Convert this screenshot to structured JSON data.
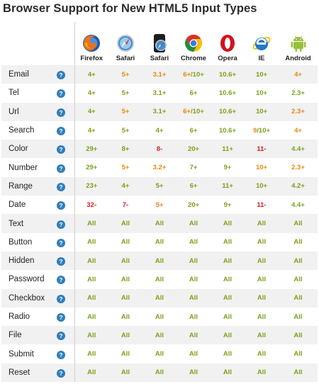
{
  "title": "Browser Support for New HTML5 Input Types",
  "browsers": [
    {
      "name": "Firefox",
      "icon": "firefox-icon"
    },
    {
      "name": "Safari",
      "icon": "safari-icon"
    },
    {
      "name": "Safari",
      "icon": "safari-ios-icon"
    },
    {
      "name": "Chrome",
      "icon": "chrome-icon"
    },
    {
      "name": "Opera",
      "icon": "opera-icon"
    },
    {
      "name": "IE",
      "icon": "ie-icon"
    },
    {
      "name": "Android",
      "icon": "android-icon"
    }
  ],
  "help_symbol": "?",
  "colors": {
    "full": "#7aa21c",
    "partial": "#e58a10",
    "none": "#d32020",
    "help": "#2f7fb8"
  },
  "rows": [
    {
      "label": "Email",
      "cells": [
        {
          "parts": [
            {
              "text": "4+",
              "status": "g"
            }
          ]
        },
        {
          "parts": [
            {
              "text": "5+",
              "status": "o"
            }
          ]
        },
        {
          "parts": [
            {
              "text": "3.1+",
              "status": "o"
            }
          ]
        },
        {
          "parts": [
            {
              "text": "6+",
              "status": "o"
            },
            {
              "text": "/10+",
              "status": "g"
            }
          ]
        },
        {
          "parts": [
            {
              "text": "10.6+",
              "status": "g"
            }
          ]
        },
        {
          "parts": [
            {
              "text": "10+",
              "status": "g"
            }
          ]
        },
        {
          "parts": [
            {
              "text": "4+",
              "status": "o"
            }
          ]
        }
      ]
    },
    {
      "label": "Tel",
      "cells": [
        {
          "parts": [
            {
              "text": "4+",
              "status": "g"
            }
          ]
        },
        {
          "parts": [
            {
              "text": "5+",
              "status": "g"
            }
          ]
        },
        {
          "parts": [
            {
              "text": "3.1+",
              "status": "g"
            }
          ]
        },
        {
          "parts": [
            {
              "text": "6+",
              "status": "g"
            }
          ]
        },
        {
          "parts": [
            {
              "text": "10.6+",
              "status": "g"
            }
          ]
        },
        {
          "parts": [
            {
              "text": "10+",
              "status": "g"
            }
          ]
        },
        {
          "parts": [
            {
              "text": "2.3+",
              "status": "g"
            }
          ]
        }
      ]
    },
    {
      "label": "Url",
      "cells": [
        {
          "parts": [
            {
              "text": "4+",
              "status": "g"
            }
          ]
        },
        {
          "parts": [
            {
              "text": "5+",
              "status": "o"
            }
          ]
        },
        {
          "parts": [
            {
              "text": "3.1+",
              "status": "g"
            }
          ]
        },
        {
          "parts": [
            {
              "text": "6+",
              "status": "o"
            },
            {
              "text": "/10+",
              "status": "g"
            }
          ]
        },
        {
          "parts": [
            {
              "text": "10.6+",
              "status": "g"
            }
          ]
        },
        {
          "parts": [
            {
              "text": "10+",
              "status": "g"
            }
          ]
        },
        {
          "parts": [
            {
              "text": "2.3+",
              "status": "o"
            }
          ]
        }
      ]
    },
    {
      "label": "Search",
      "cells": [
        {
          "parts": [
            {
              "text": "4+",
              "status": "g"
            }
          ]
        },
        {
          "parts": [
            {
              "text": "5+",
              "status": "g"
            }
          ]
        },
        {
          "parts": [
            {
              "text": "4+",
              "status": "g"
            }
          ]
        },
        {
          "parts": [
            {
              "text": "6+",
              "status": "g"
            }
          ]
        },
        {
          "parts": [
            {
              "text": "10.6+",
              "status": "g"
            }
          ]
        },
        {
          "parts": [
            {
              "text": "9",
              "status": "o"
            },
            {
              "text": "/10+",
              "status": "g"
            }
          ]
        },
        {
          "parts": [
            {
              "text": "4+",
              "status": "o"
            }
          ]
        }
      ]
    },
    {
      "label": "Color",
      "cells": [
        {
          "parts": [
            {
              "text": "29+",
              "status": "g"
            }
          ]
        },
        {
          "parts": [
            {
              "text": "8+",
              "status": "g"
            }
          ]
        },
        {
          "parts": [
            {
              "text": "8-",
              "status": "r"
            }
          ]
        },
        {
          "parts": [
            {
              "text": "20+",
              "status": "g"
            }
          ]
        },
        {
          "parts": [
            {
              "text": "11+",
              "status": "g"
            }
          ]
        },
        {
          "parts": [
            {
              "text": "11-",
              "status": "r"
            }
          ]
        },
        {
          "parts": [
            {
              "text": "4.4+",
              "status": "g"
            }
          ]
        }
      ]
    },
    {
      "label": "Number",
      "cells": [
        {
          "parts": [
            {
              "text": "29+",
              "status": "g"
            }
          ]
        },
        {
          "parts": [
            {
              "text": "5+",
              "status": "o"
            }
          ]
        },
        {
          "parts": [
            {
              "text": "3.2+",
              "status": "o"
            }
          ]
        },
        {
          "parts": [
            {
              "text": "7+",
              "status": "g"
            }
          ]
        },
        {
          "parts": [
            {
              "text": "9+",
              "status": "g"
            }
          ]
        },
        {
          "parts": [
            {
              "text": "10+",
              "status": "o"
            }
          ]
        },
        {
          "parts": [
            {
              "text": "2.3+",
              "status": "o"
            }
          ]
        }
      ]
    },
    {
      "label": "Range",
      "cells": [
        {
          "parts": [
            {
              "text": "23+",
              "status": "g"
            }
          ]
        },
        {
          "parts": [
            {
              "text": "4+",
              "status": "g"
            }
          ]
        },
        {
          "parts": [
            {
              "text": "5+",
              "status": "g"
            }
          ]
        },
        {
          "parts": [
            {
              "text": "6+",
              "status": "g"
            }
          ]
        },
        {
          "parts": [
            {
              "text": "11+",
              "status": "g"
            }
          ]
        },
        {
          "parts": [
            {
              "text": "10+",
              "status": "g"
            }
          ]
        },
        {
          "parts": [
            {
              "text": "4.2+",
              "status": "g"
            }
          ]
        }
      ]
    },
    {
      "label": "Date",
      "cells": [
        {
          "parts": [
            {
              "text": "32-",
              "status": "r"
            }
          ]
        },
        {
          "parts": [
            {
              "text": "7-",
              "status": "r"
            }
          ]
        },
        {
          "parts": [
            {
              "text": "5+",
              "status": "o"
            }
          ]
        },
        {
          "parts": [
            {
              "text": "20+",
              "status": "g"
            }
          ]
        },
        {
          "parts": [
            {
              "text": "9+",
              "status": "g"
            }
          ]
        },
        {
          "parts": [
            {
              "text": "11-",
              "status": "r"
            }
          ]
        },
        {
          "parts": [
            {
              "text": "4.4+",
              "status": "g"
            }
          ]
        }
      ]
    },
    {
      "label": "Text",
      "cells": "all"
    },
    {
      "label": "Button",
      "cells": "all"
    },
    {
      "label": "Hidden",
      "cells": "all"
    },
    {
      "label": "Password",
      "cells": "all"
    },
    {
      "label": "Checkbox",
      "cells": "all"
    },
    {
      "label": "Radio",
      "cells": "all"
    },
    {
      "label": "File",
      "cells": "all"
    },
    {
      "label": "Submit",
      "cells": "all"
    },
    {
      "label": "Reset",
      "cells": "all"
    }
  ],
  "all_label": "All"
}
